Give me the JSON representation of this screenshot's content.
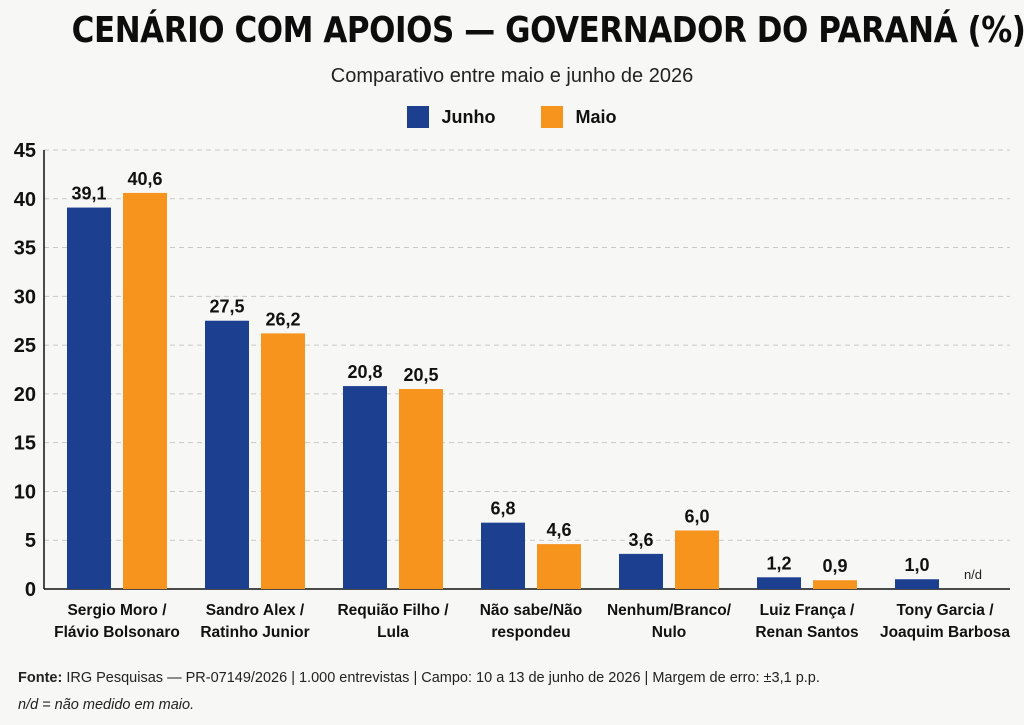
{
  "title": "CENÁRIO COM APOIOS — GOVERNADOR DO PARANÁ (%)",
  "subtitle": "Comparativo entre maio e junho de 2026",
  "colors": {
    "junho": "#1c3f8f",
    "maio": "#f7941d",
    "grid": "#c9c9c9"
  },
  "footer": {
    "source_label": "Fonte:",
    "source_text": "IRG Pesquisas — PR-07149/2026  |  1.000 entrevistas  |  Campo: 10 a 13 de junho de 2026  |  Margem de erro: ±3,1 p.p.",
    "note": "n/d = não medido em maio."
  },
  "chart_data": {
    "type": "bar",
    "categories": [
      [
        "Sergio Moro /",
        "Flávio Bolsonaro"
      ],
      [
        "Sandro Alex /",
        "Ratinho Junior"
      ],
      [
        "Requião Filho /",
        "Lula"
      ],
      [
        "Não sabe/Não",
        "respondeu"
      ],
      [
        "Nenhum/Branco/",
        "Nulo"
      ],
      [
        "Luiz França /",
        "Renan Santos"
      ],
      [
        "Tony Garcia /",
        "Joaquim Barbosa"
      ]
    ],
    "series": [
      {
        "name": "Junho",
        "values": [
          39.1,
          27.5,
          20.8,
          6.8,
          3.6,
          1.2,
          1.0
        ],
        "labels": [
          "39,1",
          "27,5",
          "20,8",
          "6,8",
          "3,6",
          "1,2",
          "1,0"
        ]
      },
      {
        "name": "Maio",
        "values": [
          40.6,
          26.2,
          20.5,
          4.6,
          6.0,
          0.9,
          null
        ],
        "labels": [
          "40,6",
          "26,2",
          "20,5",
          "4,6",
          "6,0",
          "0,9",
          "n/d"
        ]
      }
    ],
    "ylim": [
      0,
      45
    ],
    "yticks": [
      0,
      5,
      10,
      15,
      20,
      25,
      30,
      35,
      40,
      45
    ],
    "grid": true,
    "legend": "top-center"
  }
}
